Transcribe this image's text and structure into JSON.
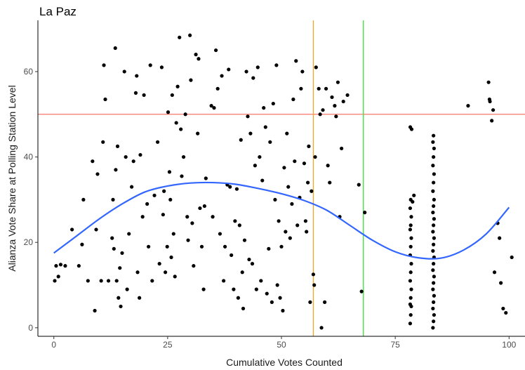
{
  "chart_data": {
    "type": "scatter",
    "title": "La Paz",
    "xlabel": "Cumulative Votes Counted",
    "ylabel": "Alianza Vote Share at Polling Station Level",
    "xlim": [
      -3.5,
      103.5
    ],
    "ylim": [
      -2,
      72
    ],
    "xticks": [
      0,
      25,
      50,
      75,
      100
    ],
    "yticks": [
      0,
      20,
      40,
      60
    ],
    "grid": false,
    "reference_lines": [
      {
        "orientation": "horizontal",
        "value": 50,
        "color": "#F8766D"
      },
      {
        "orientation": "vertical",
        "value": 57,
        "color": "#F5A623"
      },
      {
        "orientation": "vertical",
        "value": 68,
        "color": "#33E633"
      }
    ],
    "smooth_color": "#3366FF",
    "point_color": "#000000",
    "smooth": [
      [
        0,
        17.5
      ],
      [
        5,
        21.5
      ],
      [
        10,
        25.5
      ],
      [
        15,
        29
      ],
      [
        20,
        31.8
      ],
      [
        25,
        33.2
      ],
      [
        30,
        33.9
      ],
      [
        35,
        34
      ],
      [
        40,
        33.6
      ],
      [
        45,
        32.6
      ],
      [
        50,
        31.4
      ],
      [
        55,
        29.8
      ],
      [
        60,
        27.5
      ],
      [
        65,
        24
      ],
      [
        70,
        20.5
      ],
      [
        75,
        17.8
      ],
      [
        80,
        16.4
      ],
      [
        85,
        16.3
      ],
      [
        90,
        18.2
      ],
      [
        95,
        22
      ],
      [
        100,
        28.2
      ]
    ],
    "points": [
      [
        0.2,
        11
      ],
      [
        0.5,
        14.5
      ],
      [
        1,
        12
      ],
      [
        1.5,
        14.8
      ],
      [
        2.5,
        14.5
      ],
      [
        4,
        23
      ],
      [
        5.5,
        14.5
      ],
      [
        6.5,
        30
      ],
      [
        6.2,
        19.5
      ],
      [
        7.5,
        11
      ],
      [
        8.5,
        39
      ],
      [
        9,
        4
      ],
      [
        9.3,
        23
      ],
      [
        9.6,
        36
      ],
      [
        10.4,
        11
      ],
      [
        10.8,
        43.5
      ],
      [
        11,
        61.5
      ],
      [
        11.3,
        53.5
      ],
      [
        12,
        11
      ],
      [
        12.8,
        21
      ],
      [
        13,
        30
      ],
      [
        13.2,
        18.5
      ],
      [
        13.5,
        65.5
      ],
      [
        13.6,
        37
      ],
      [
        13.8,
        11
      ],
      [
        14,
        42.5
      ],
      [
        14.2,
        7
      ],
      [
        14.5,
        14
      ],
      [
        14.7,
        5
      ],
      [
        15,
        17.5
      ],
      [
        15.5,
        60
      ],
      [
        15.8,
        40
      ],
      [
        16.1,
        9
      ],
      [
        16.5,
        22
      ],
      [
        17.1,
        33
      ],
      [
        17.5,
        39
      ],
      [
        18,
        55
      ],
      [
        18.2,
        59
      ],
      [
        18.4,
        13
      ],
      [
        18.8,
        7
      ],
      [
        19,
        40.5
      ],
      [
        19.5,
        26
      ],
      [
        19.8,
        54.5
      ],
      [
        20.5,
        29
      ],
      [
        20.8,
        19
      ],
      [
        21.2,
        61.5
      ],
      [
        21.6,
        11
      ],
      [
        22.1,
        31
      ],
      [
        22.8,
        43.5
      ],
      [
        23.2,
        15
      ],
      [
        23.7,
        61
      ],
      [
        24,
        26.5
      ],
      [
        24.2,
        32
      ],
      [
        24.5,
        13
      ],
      [
        24.9,
        19
      ],
      [
        25.1,
        50.5
      ],
      [
        25.4,
        36.5
      ],
      [
        25.6,
        30
      ],
      [
        25.8,
        16.5
      ],
      [
        26,
        54.5
      ],
      [
        26.3,
        22
      ],
      [
        26.6,
        12
      ],
      [
        26.9,
        48
      ],
      [
        27.2,
        56.5
      ],
      [
        27.6,
        68
      ],
      [
        27.9,
        46.5
      ],
      [
        28.1,
        35.5
      ],
      [
        28.5,
        40
      ],
      [
        28.9,
        50
      ],
      [
        29.3,
        26
      ],
      [
        29.5,
        20.5
      ],
      [
        29.9,
        68.5
      ],
      [
        30.1,
        58
      ],
      [
        30.4,
        24.5
      ],
      [
        30.7,
        14.5
      ],
      [
        31.2,
        64
      ],
      [
        31.6,
        45.5
      ],
      [
        31.8,
        63
      ],
      [
        32.1,
        28
      ],
      [
        32.5,
        19
      ],
      [
        32.9,
        9
      ],
      [
        33.1,
        28.5
      ],
      [
        33.4,
        35
      ],
      [
        34.6,
        52
      ],
      [
        34.9,
        26
      ],
      [
        35.2,
        51.5
      ],
      [
        35.6,
        65
      ],
      [
        36,
        56
      ],
      [
        36.5,
        22
      ],
      [
        36.9,
        59
      ],
      [
        37.3,
        11
      ],
      [
        37.6,
        19
      ],
      [
        38.1,
        33.5
      ],
      [
        38.4,
        60.5
      ],
      [
        38.7,
        33
      ],
      [
        39,
        17
      ],
      [
        39.5,
        9
      ],
      [
        39.8,
        25
      ],
      [
        40.2,
        32.5
      ],
      [
        40.5,
        7
      ],
      [
        40.8,
        24
      ],
      [
        41.1,
        44
      ],
      [
        41.4,
        13
      ],
      [
        41.6,
        4.5
      ],
      [
        41.9,
        20.5
      ],
      [
        42.3,
        60
      ],
      [
        42.6,
        49.5
      ],
      [
        42.9,
        16
      ],
      [
        43.2,
        45.5
      ],
      [
        43.6,
        15
      ],
      [
        43.8,
        58.5
      ],
      [
        44.2,
        38
      ],
      [
        44.5,
        9
      ],
      [
        44.8,
        61
      ],
      [
        45.2,
        40
      ],
      [
        45.5,
        11
      ],
      [
        45.8,
        34.5
      ],
      [
        46.1,
        51.5
      ],
      [
        46.5,
        47
      ],
      [
        46.8,
        8
      ],
      [
        47.2,
        18.5
      ],
      [
        47.5,
        43.5
      ],
      [
        47.9,
        6
      ],
      [
        48.2,
        52.5
      ],
      [
        48.6,
        30
      ],
      [
        48.9,
        61.5
      ],
      [
        49.1,
        10
      ],
      [
        49.4,
        25
      ],
      [
        49.7,
        7
      ],
      [
        50,
        19
      ],
      [
        50.3,
        4
      ],
      [
        50.6,
        37.5
      ],
      [
        50.9,
        22.5
      ],
      [
        51.2,
        45.5
      ],
      [
        51.5,
        33
      ],
      [
        51.9,
        21
      ],
      [
        52.3,
        29
      ],
      [
        52.6,
        53.5
      ],
      [
        52.9,
        39
      ],
      [
        53.2,
        62.5
      ],
      [
        53.5,
        24
      ],
      [
        54,
        30.5
      ],
      [
        54.3,
        56
      ],
      [
        54.6,
        60
      ],
      [
        55,
        38.5
      ],
      [
        55.3,
        25
      ],
      [
        55.5,
        22.5
      ],
      [
        55.8,
        34
      ],
      [
        56,
        42.5
      ],
      [
        56.3,
        6
      ],
      [
        56.6,
        32
      ],
      [
        57,
        12.5
      ],
      [
        57.2,
        10
      ],
      [
        57.4,
        40
      ],
      [
        57.6,
        61
      ],
      [
        58.2,
        56
      ],
      [
        58.5,
        50
      ],
      [
        58.8,
        0
      ],
      [
        59.1,
        51
      ],
      [
        59.5,
        6
      ],
      [
        59.8,
        56
      ],
      [
        60.2,
        38
      ],
      [
        60.6,
        34
      ],
      [
        61.1,
        54
      ],
      [
        61.7,
        52
      ],
      [
        62,
        49.5
      ],
      [
        62.4,
        57.5
      ],
      [
        62.8,
        26
      ],
      [
        63.2,
        42
      ],
      [
        63.6,
        53
      ],
      [
        64.5,
        54.5
      ],
      [
        67,
        33.5
      ],
      [
        67.6,
        8.5
      ],
      [
        68.3,
        27
      ],
      [
        78.3,
        47
      ],
      [
        78.6,
        46.5
      ],
      [
        79.1,
        31
      ],
      [
        78.8,
        29.5
      ],
      [
        91,
        52
      ],
      [
        95.5,
        57.5
      ],
      [
        95.7,
        53.5
      ],
      [
        95.8,
        53
      ],
      [
        96.2,
        48.5
      ],
      [
        96.5,
        51
      ],
      [
        96.8,
        13
      ],
      [
        97.5,
        24.5
      ],
      [
        97.9,
        21
      ],
      [
        98.2,
        10.5
      ],
      [
        98.7,
        4.5
      ],
      [
        99.3,
        3.5
      ],
      [
        100.6,
        16.5
      ]
    ],
    "clusters": [
      {
        "x": 78.4,
        "y_values": [
          1,
          3,
          5,
          5.5,
          7,
          9,
          11,
          13,
          15,
          17,
          19,
          21,
          23,
          24,
          26,
          28,
          30
        ]
      },
      {
        "x": 83.4,
        "y_values": [
          0,
          1.5,
          3,
          4.5,
          6,
          7.5,
          9,
          10.5,
          12,
          13.5,
          15,
          16.5,
          18,
          19.5,
          21,
          22.5,
          24,
          25.5,
          27,
          28.5,
          30,
          32,
          34,
          36,
          38,
          40,
          42,
          43.5,
          45
        ]
      }
    ]
  }
}
